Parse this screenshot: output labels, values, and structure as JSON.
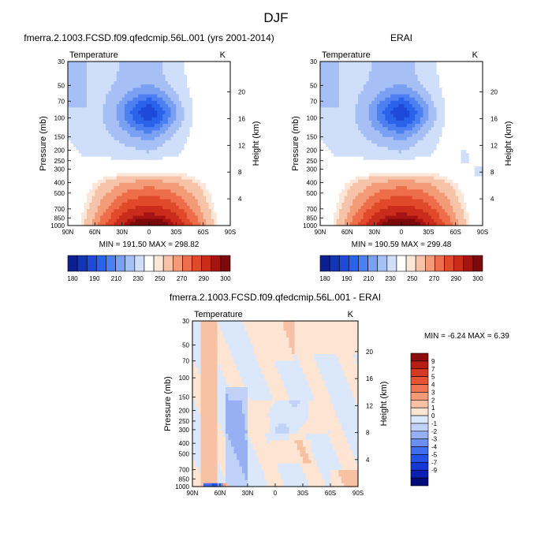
{
  "figure": {
    "title": "DJF"
  },
  "colors": {
    "abs_palette": [
      "#0c1f8f",
      "#1434b6",
      "#1f49d8",
      "#2a62ea",
      "#4c7ff0",
      "#7aa0f3",
      "#a6c0f6",
      "#cfdef9",
      "#ffffff",
      "#fbe6d7",
      "#f7c3a8",
      "#f39a77",
      "#ee6d4a",
      "#e04a2b",
      "#c92c1a",
      "#a51410",
      "#7b0a0a"
    ],
    "diff_palette": [
      "#020b7a",
      "#0920b0",
      "#1437d6",
      "#2550e8",
      "#3f6ded",
      "#6b8ff1",
      "#97b0f4",
      "#c1d2f8",
      "#dbe7fa",
      "#fde4d3",
      "#f8c1a4",
      "#f39a77",
      "#ee7654",
      "#e55535",
      "#d43a22",
      "#b51f14",
      "#8a0e0c"
    ]
  },
  "chart_data": [
    {
      "type": "heatmap",
      "id": "model",
      "title": "fmerra.2.1003.FCSD.f09.qfedcmip.56L.001 (yrs 2001-2014)",
      "variable": "Temperature",
      "units": "K",
      "ylabel": "Pressure (mb)",
      "ylabel_right": "Height (km)",
      "x_ticks": [
        "90N",
        "60N",
        "30N",
        "0",
        "30S",
        "60S",
        "90S"
      ],
      "y_ticks": [
        30,
        50,
        70,
        100,
        150,
        200,
        250,
        300,
        400,
        500,
        700,
        850,
        1000
      ],
      "y_ticks_right": [
        4,
        8,
        12,
        16,
        20
      ],
      "ylim": [
        1000,
        30
      ],
      "min": "191.50",
      "max": "298.82",
      "stats_text": "MIN = 191.50  MAX = 298.82",
      "colorbar_labels": [
        "180",
        "190",
        "210",
        "230",
        "250",
        "270",
        "290",
        "300"
      ]
    },
    {
      "type": "heatmap",
      "id": "obs",
      "title": "ERAI",
      "variable": "Temperature",
      "units": "K",
      "ylabel": "Pressure (mb)",
      "ylabel_right": "Height (km)",
      "x_ticks": [
        "90N",
        "60N",
        "30N",
        "0",
        "30S",
        "60S",
        "90S"
      ],
      "y_ticks": [
        30,
        50,
        70,
        100,
        150,
        200,
        250,
        300,
        400,
        500,
        700,
        850,
        1000
      ],
      "y_ticks_right": [
        4,
        8,
        12,
        16,
        20
      ],
      "ylim": [
        1000,
        30
      ],
      "min": "190.59",
      "max": "299.48",
      "stats_text": "MIN = 190.59  MAX = 299.48",
      "colorbar_labels": [
        "180",
        "190",
        "210",
        "230",
        "250",
        "270",
        "290",
        "300"
      ]
    },
    {
      "type": "heatmap",
      "id": "diff",
      "title": "fmerra.2.1003.FCSD.f09.qfedcmip.56L.001 - ERAI",
      "variable": "Temperature",
      "units": "K",
      "ylabel": "Pressure (mb)",
      "ylabel_right": "Height (km)",
      "x_ticks": [
        "90N",
        "60N",
        "30N",
        "0",
        "30S",
        "60S",
        "90S"
      ],
      "y_ticks": [
        30,
        50,
        70,
        100,
        150,
        200,
        250,
        300,
        400,
        500,
        700,
        850,
        1000
      ],
      "y_ticks_right": [
        4,
        8,
        12,
        16,
        20
      ],
      "ylim": [
        1000,
        30
      ],
      "min": "-6.24",
      "max": "6.39",
      "stats_text": "MIN =  -6.24  MAX =   6.39",
      "colorbar_labels": [
        "9",
        "7",
        "5",
        "4",
        "3",
        "2",
        "1",
        "0",
        "-1",
        "-2",
        "-3",
        "-4",
        "-5",
        "-7",
        "-9"
      ]
    }
  ]
}
